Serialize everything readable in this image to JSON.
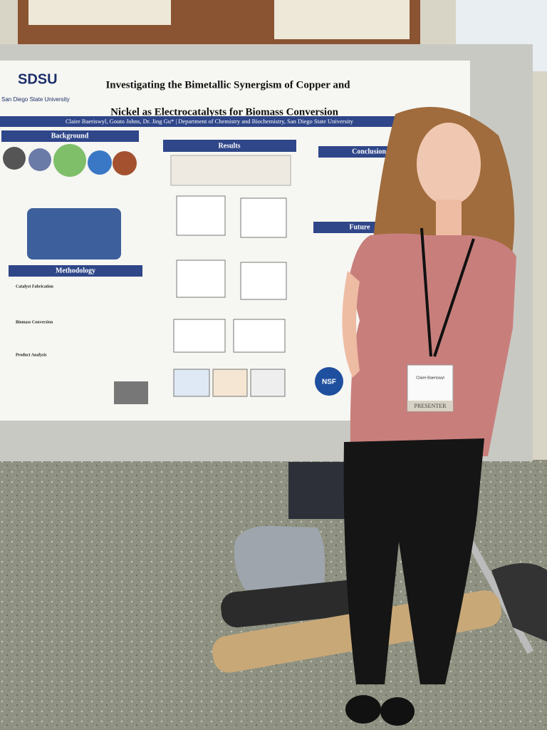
{
  "logo": {
    "name": "SDSU",
    "university": "San Diego State University"
  },
  "poster": {
    "title": [
      "Investigating the Bimetallic Synergism of Copper and",
      "Nickel as Electrocatalysts for Biomass Conversion"
    ],
    "authors": "Claire Baeriswyl, Gouto Johns, Dr. Jing Gu* | Department of Chemistry and Biochemistry, San Diego State University",
    "sections": {
      "background": "Background",
      "results": "Results",
      "conclusions": "Conclusions",
      "methodology": "Methodology",
      "future": "Future"
    },
    "methodology_steps": [
      "Catalyst Fabrication",
      "Biomass Conversion",
      "Product Analysis"
    ],
    "sponsor": "NSF"
  },
  "badge": {
    "name": "Claire Baeriswyl",
    "role": "PRESENTER"
  }
}
